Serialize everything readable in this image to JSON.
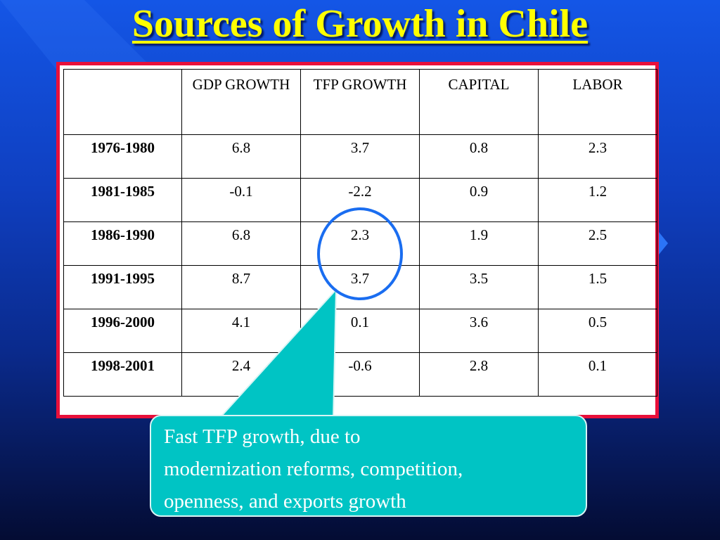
{
  "slide": {
    "title": "Sources of Growth in Chile",
    "colors": {
      "title": "#ffff00",
      "frame": "#e8103a",
      "callout": "#00c4c4",
      "highlight": "#1a6df0"
    }
  },
  "table": {
    "headers": [
      "",
      "GDP GROWTH",
      "TFP GROWTH",
      "CAPITAL",
      "LABOR"
    ],
    "rows": [
      {
        "period": "1976-1980",
        "values": [
          "6.8",
          "3.7",
          "0.8",
          "2.3"
        ]
      },
      {
        "period": "1981-1985",
        "values": [
          "-0.1",
          "-2.2",
          "0.9",
          "1.2"
        ]
      },
      {
        "period": "1986-1990",
        "values": [
          "6.8",
          "2.3",
          "1.9",
          "2.5"
        ]
      },
      {
        "period": "1991-1995",
        "values": [
          "8.7",
          "3.7",
          "3.5",
          "1.5"
        ]
      },
      {
        "period": "1996-2000",
        "values": [
          "4.1",
          "0.1",
          "3.6",
          "0.5"
        ]
      },
      {
        "period": "1998-2001",
        "values": [
          "2.4",
          "-0.6",
          "2.8",
          "0.1"
        ]
      }
    ]
  },
  "callout": {
    "text": "Fast TFP growth, due to\nmodernization reforms, competition,\n openness, and exports growth"
  }
}
